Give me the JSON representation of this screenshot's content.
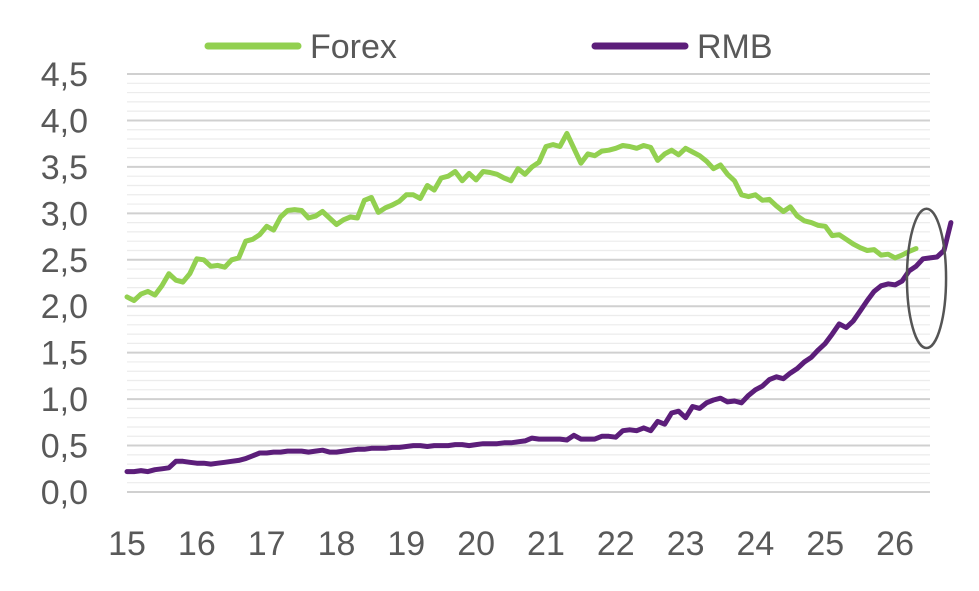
{
  "chart_data": {
    "type": "line",
    "title": "",
    "xlabel": "",
    "ylabel": "",
    "ylim": [
      0,
      4.5
    ],
    "xlim": [
      2015,
      2026.5
    ],
    "y_ticks": [
      "0,0",
      "0,5",
      "1,0",
      "1,5",
      "2,0",
      "2,5",
      "3,0",
      "3,5",
      "4,0",
      "4,5"
    ],
    "x_ticks": [
      "15",
      "16",
      "17",
      "18",
      "19",
      "20",
      "21",
      "22",
      "23",
      "24",
      "25",
      "26"
    ],
    "grid": true,
    "legend_position": "top",
    "series": [
      {
        "name": "Forex",
        "color": "#92D050",
        "points": [
          [
            2015.0,
            2.1
          ],
          [
            2015.1,
            2.06
          ],
          [
            2015.2,
            2.13
          ],
          [
            2015.3,
            2.16
          ],
          [
            2015.4,
            2.12
          ],
          [
            2015.5,
            2.22
          ],
          [
            2015.6,
            2.35
          ],
          [
            2015.7,
            2.28
          ],
          [
            2015.8,
            2.26
          ],
          [
            2015.9,
            2.35
          ],
          [
            2016.0,
            2.51
          ],
          [
            2016.1,
            2.5
          ],
          [
            2016.2,
            2.43
          ],
          [
            2016.3,
            2.44
          ],
          [
            2016.4,
            2.42
          ],
          [
            2016.5,
            2.5
          ],
          [
            2016.6,
            2.52
          ],
          [
            2016.7,
            2.7
          ],
          [
            2016.8,
            2.72
          ],
          [
            2016.9,
            2.77
          ],
          [
            2017.0,
            2.86
          ],
          [
            2017.1,
            2.82
          ],
          [
            2017.2,
            2.96
          ],
          [
            2017.3,
            3.03
          ],
          [
            2017.4,
            3.04
          ],
          [
            2017.5,
            3.03
          ],
          [
            2017.6,
            2.95
          ],
          [
            2017.7,
            2.97
          ],
          [
            2017.8,
            3.02
          ],
          [
            2017.9,
            2.95
          ],
          [
            2018.0,
            2.88
          ],
          [
            2018.1,
            2.93
          ],
          [
            2018.2,
            2.96
          ],
          [
            2018.3,
            2.95
          ],
          [
            2018.4,
            3.14
          ],
          [
            2018.5,
            3.17
          ],
          [
            2018.6,
            3.01
          ],
          [
            2018.7,
            3.06
          ],
          [
            2018.8,
            3.09
          ],
          [
            2018.9,
            3.13
          ],
          [
            2019.0,
            3.2
          ],
          [
            2019.1,
            3.2
          ],
          [
            2019.2,
            3.16
          ],
          [
            2019.3,
            3.3
          ],
          [
            2019.4,
            3.25
          ],
          [
            2019.5,
            3.38
          ],
          [
            2019.6,
            3.4
          ],
          [
            2019.7,
            3.45
          ],
          [
            2019.8,
            3.35
          ],
          [
            2019.9,
            3.43
          ],
          [
            2020.0,
            3.36
          ],
          [
            2020.1,
            3.45
          ],
          [
            2020.2,
            3.44
          ],
          [
            2020.3,
            3.42
          ],
          [
            2020.4,
            3.38
          ],
          [
            2020.5,
            3.35
          ],
          [
            2020.6,
            3.48
          ],
          [
            2020.7,
            3.42
          ],
          [
            2020.8,
            3.5
          ],
          [
            2020.9,
            3.55
          ],
          [
            2021.0,
            3.72
          ],
          [
            2021.1,
            3.74
          ],
          [
            2021.2,
            3.72
          ],
          [
            2021.3,
            3.86
          ],
          [
            2021.4,
            3.7
          ],
          [
            2021.5,
            3.54
          ],
          [
            2021.6,
            3.64
          ],
          [
            2021.7,
            3.62
          ],
          [
            2021.8,
            3.67
          ],
          [
            2021.9,
            3.68
          ],
          [
            2022.0,
            3.7
          ],
          [
            2022.1,
            3.73
          ],
          [
            2022.2,
            3.72
          ],
          [
            2022.3,
            3.7
          ],
          [
            2022.4,
            3.73
          ],
          [
            2022.5,
            3.71
          ],
          [
            2022.6,
            3.57
          ],
          [
            2022.7,
            3.64
          ],
          [
            2022.8,
            3.68
          ],
          [
            2022.9,
            3.63
          ],
          [
            2023.0,
            3.7
          ],
          [
            2023.1,
            3.66
          ],
          [
            2023.2,
            3.62
          ],
          [
            2023.3,
            3.56
          ],
          [
            2023.4,
            3.48
          ],
          [
            2023.5,
            3.52
          ],
          [
            2023.6,
            3.42
          ],
          [
            2023.7,
            3.35
          ],
          [
            2023.8,
            3.2
          ],
          [
            2023.9,
            3.18
          ],
          [
            2024.0,
            3.2
          ],
          [
            2024.1,
            3.14
          ],
          [
            2024.2,
            3.15
          ],
          [
            2024.3,
            3.08
          ],
          [
            2024.4,
            3.02
          ],
          [
            2024.5,
            3.07
          ],
          [
            2024.6,
            2.97
          ],
          [
            2024.7,
            2.92
          ],
          [
            2024.8,
            2.9
          ],
          [
            2024.9,
            2.87
          ],
          [
            2025.0,
            2.86
          ],
          [
            2025.1,
            2.76
          ],
          [
            2025.2,
            2.77
          ],
          [
            2025.3,
            2.72
          ],
          [
            2025.4,
            2.67
          ],
          [
            2025.5,
            2.63
          ],
          [
            2025.6,
            2.6
          ],
          [
            2025.7,
            2.61
          ],
          [
            2025.8,
            2.55
          ],
          [
            2025.9,
            2.56
          ],
          [
            2026.0,
            2.52
          ],
          [
            2026.1,
            2.55
          ],
          [
            2026.2,
            2.59
          ],
          [
            2026.3,
            2.62
          ]
        ]
      },
      {
        "name": "RMB",
        "color": "#5C1E7A",
        "points": [
          [
            2015.0,
            0.22
          ],
          [
            2015.1,
            0.22
          ],
          [
            2015.2,
            0.23
          ],
          [
            2015.3,
            0.22
          ],
          [
            2015.4,
            0.24
          ],
          [
            2015.5,
            0.25
          ],
          [
            2015.6,
            0.26
          ],
          [
            2015.7,
            0.33
          ],
          [
            2015.8,
            0.33
          ],
          [
            2015.9,
            0.32
          ],
          [
            2016.0,
            0.31
          ],
          [
            2016.1,
            0.31
          ],
          [
            2016.2,
            0.3
          ],
          [
            2016.3,
            0.31
          ],
          [
            2016.4,
            0.32
          ],
          [
            2016.5,
            0.33
          ],
          [
            2016.6,
            0.34
          ],
          [
            2016.7,
            0.36
          ],
          [
            2016.8,
            0.39
          ],
          [
            2016.9,
            0.42
          ],
          [
            2017.0,
            0.42
          ],
          [
            2017.1,
            0.43
          ],
          [
            2017.2,
            0.43
          ],
          [
            2017.3,
            0.44
          ],
          [
            2017.4,
            0.44
          ],
          [
            2017.5,
            0.44
          ],
          [
            2017.6,
            0.43
          ],
          [
            2017.7,
            0.44
          ],
          [
            2017.8,
            0.45
          ],
          [
            2017.9,
            0.43
          ],
          [
            2018.0,
            0.43
          ],
          [
            2018.1,
            0.44
          ],
          [
            2018.2,
            0.45
          ],
          [
            2018.3,
            0.46
          ],
          [
            2018.4,
            0.46
          ],
          [
            2018.5,
            0.47
          ],
          [
            2018.6,
            0.47
          ],
          [
            2018.7,
            0.47
          ],
          [
            2018.8,
            0.48
          ],
          [
            2018.9,
            0.48
          ],
          [
            2019.0,
            0.49
          ],
          [
            2019.1,
            0.5
          ],
          [
            2019.2,
            0.5
          ],
          [
            2019.3,
            0.49
          ],
          [
            2019.4,
            0.5
          ],
          [
            2019.5,
            0.5
          ],
          [
            2019.6,
            0.5
          ],
          [
            2019.7,
            0.51
          ],
          [
            2019.8,
            0.51
          ],
          [
            2019.9,
            0.5
          ],
          [
            2020.0,
            0.51
          ],
          [
            2020.1,
            0.52
          ],
          [
            2020.2,
            0.52
          ],
          [
            2020.3,
            0.52
          ],
          [
            2020.4,
            0.53
          ],
          [
            2020.5,
            0.53
          ],
          [
            2020.6,
            0.54
          ],
          [
            2020.7,
            0.55
          ],
          [
            2020.8,
            0.58
          ],
          [
            2020.9,
            0.57
          ],
          [
            2021.0,
            0.57
          ],
          [
            2021.1,
            0.57
          ],
          [
            2021.2,
            0.57
          ],
          [
            2021.3,
            0.56
          ],
          [
            2021.4,
            0.61
          ],
          [
            2021.5,
            0.57
          ],
          [
            2021.6,
            0.57
          ],
          [
            2021.7,
            0.57
          ],
          [
            2021.8,
            0.6
          ],
          [
            2021.9,
            0.6
          ],
          [
            2022.0,
            0.59
          ],
          [
            2022.1,
            0.66
          ],
          [
            2022.2,
            0.67
          ],
          [
            2022.3,
            0.66
          ],
          [
            2022.4,
            0.69
          ],
          [
            2022.5,
            0.66
          ],
          [
            2022.6,
            0.76
          ],
          [
            2022.7,
            0.73
          ],
          [
            2022.8,
            0.85
          ],
          [
            2022.9,
            0.87
          ],
          [
            2023.0,
            0.8
          ],
          [
            2023.1,
            0.92
          ],
          [
            2023.2,
            0.9
          ],
          [
            2023.3,
            0.96
          ],
          [
            2023.4,
            0.99
          ],
          [
            2023.5,
            1.01
          ],
          [
            2023.6,
            0.97
          ],
          [
            2023.7,
            0.98
          ],
          [
            2023.8,
            0.96
          ],
          [
            2023.9,
            1.04
          ],
          [
            2024.0,
            1.1
          ],
          [
            2024.1,
            1.14
          ],
          [
            2024.2,
            1.21
          ],
          [
            2024.3,
            1.24
          ],
          [
            2024.4,
            1.22
          ],
          [
            2024.5,
            1.28
          ],
          [
            2024.6,
            1.33
          ],
          [
            2024.7,
            1.4
          ],
          [
            2024.8,
            1.45
          ],
          [
            2024.9,
            1.53
          ],
          [
            2025.0,
            1.6
          ],
          [
            2025.1,
            1.7
          ],
          [
            2025.2,
            1.81
          ],
          [
            2025.3,
            1.77
          ],
          [
            2025.4,
            1.84
          ],
          [
            2025.5,
            1.95
          ],
          [
            2025.6,
            2.06
          ],
          [
            2025.7,
            2.16
          ],
          [
            2025.8,
            2.22
          ],
          [
            2025.9,
            2.24
          ],
          [
            2026.0,
            2.23
          ],
          [
            2026.1,
            2.27
          ],
          [
            2026.2,
            2.38
          ],
          [
            2026.3,
            2.43
          ],
          [
            2026.4,
            2.51
          ],
          [
            2026.5,
            2.52
          ],
          [
            2026.6,
            2.53
          ],
          [
            2026.7,
            2.6
          ],
          [
            2026.8,
            2.9
          ]
        ]
      }
    ],
    "annotations": [
      {
        "type": "ellipse-highlight",
        "x_center": 2026.45,
        "y_center": 2.3,
        "x_radius": 0.28,
        "y_radius": 0.75
      }
    ]
  }
}
